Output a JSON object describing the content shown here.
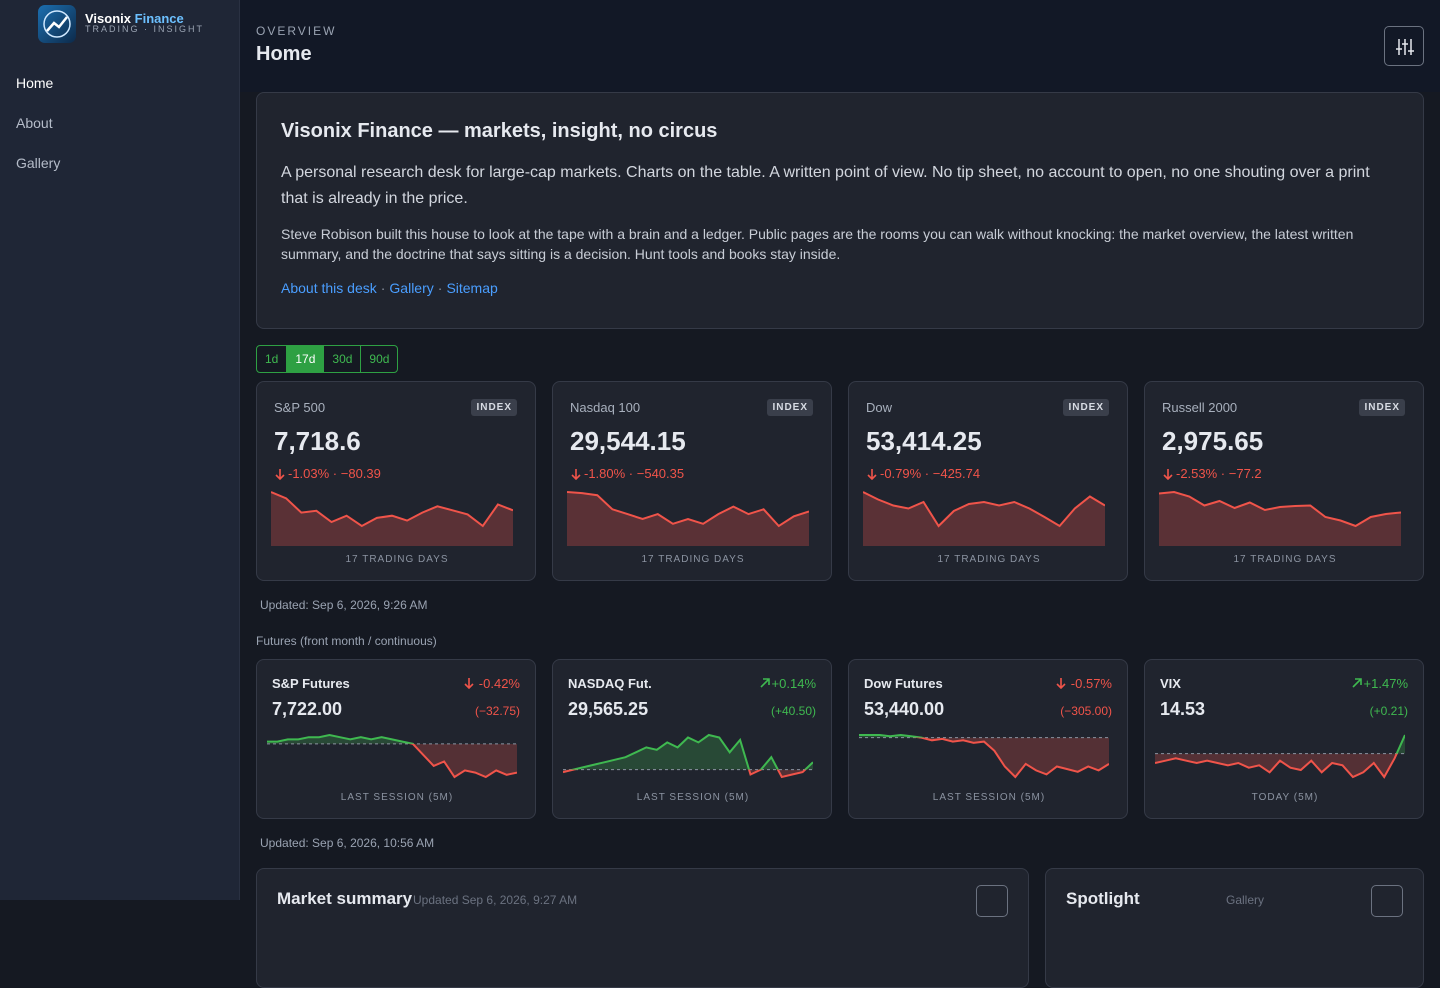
{
  "sidebar": {
    "brand": "Visonix",
    "brand_accent": "Finance",
    "tagline": "TRADING · INSIGHT",
    "nav": [
      "Home",
      "About",
      "Gallery"
    ],
    "active_nav": 0
  },
  "header": {
    "eyebrow": "OVERVIEW",
    "title": "Home"
  },
  "intro": {
    "title": "Visonix Finance — markets, insight, no circus",
    "lead": "A personal research desk for large-cap markets. Charts on the table. A written point of view. No tip sheet, no account to open, no one shouting over a print that is already in the price.",
    "body": "Steve Robison built this house to look at the tape with a brain and a ledger. Public pages are the rooms you can walk without knocking: the market overview, the latest written summary, and the doctrine that says sitting is a decision. Hunt tools and books stay inside.",
    "links": [
      "About this desk",
      "Gallery",
      "Sitemap"
    ],
    "separator": "·"
  },
  "ranges": [
    "1d",
    "17d",
    "30d",
    "90d"
  ],
  "active_range": 1,
  "indices": [
    {
      "name": "S&P 500",
      "badge": "INDEX",
      "price": "7,718.6",
      "change": "-1.03% · −80.39",
      "caption": "17 TRADING DAYS",
      "spark": [
        96,
        82,
        50,
        54,
        29,
        43,
        20,
        38,
        43,
        32,
        50,
        64,
        55,
        46,
        20,
        68,
        55
      ]
    },
    {
      "name": "Nasdaq 100",
      "badge": "INDEX",
      "price": "29,544.15",
      "change": "-1.80% · −540.35",
      "caption": "17 TRADING DAYS",
      "spark": [
        70,
        68,
        64,
        38,
        29,
        20,
        29,
        11,
        20,
        11,
        29,
        43,
        29,
        38,
        7,
        25,
        34
      ]
    },
    {
      "name": "Dow",
      "badge": "INDEX",
      "price": "53,414.25",
      "change": "-0.79% · −425.74",
      "caption": "17 TRADING DAYS",
      "spark": [
        88,
        73,
        61,
        55,
        68,
        20,
        50,
        64,
        68,
        61,
        68,
        55,
        38,
        20,
        55,
        79,
        61
      ]
    },
    {
      "name": "Russell 2000",
      "badge": "INDEX",
      "price": "2,975.65",
      "change": "-2.53% · −77.2",
      "caption": "17 TRADING DAYS",
      "spark": [
        79,
        82,
        73,
        55,
        64,
        50,
        61,
        46,
        52,
        54,
        55,
        32,
        25,
        14,
        32,
        38,
        41
      ]
    }
  ],
  "indices_updated": "Updated: Sep 6, 2026, 9:26 AM",
  "futures_label": "Futures (front month / continuous)",
  "futures": [
    {
      "name": "S&P Futures",
      "change": "-0.42%",
      "price": "7,722.00",
      "delta": "(−32.75)",
      "caption": "LAST SESSION (5M)",
      "spark": [
        1,
        1,
        2,
        2,
        3,
        3,
        4,
        3,
        2,
        3,
        2,
        3,
        2,
        1,
        0,
        -5,
        -10,
        -8,
        -15,
        -12,
        -13,
        -15,
        -12,
        -14,
        -13
      ]
    },
    {
      "name": "NASDAQ Fut.",
      "change": "+0.14%",
      "price": "29,565.25",
      "delta": "(+40.50)",
      "caption": "LAST SESSION (5M)",
      "spark": [
        -2,
        0,
        2,
        4,
        6,
        8,
        10,
        14,
        18,
        16,
        22,
        18,
        26,
        22,
        28,
        26,
        14,
        24,
        -4,
        0,
        10,
        -6,
        -4,
        -2,
        6
      ]
    },
    {
      "name": "Dow Futures",
      "change": "-0.57%",
      "price": "53,440.00",
      "delta": "(−305.00)",
      "caption": "LAST SESSION (5M)",
      "spark": [
        2,
        2,
        2,
        1,
        2,
        1,
        0,
        -2,
        -1,
        -3,
        -2,
        -4,
        -3,
        -10,
        -22,
        -30,
        -20,
        -25,
        -28,
        -22,
        -24,
        -26,
        -22,
        -25,
        -20
      ]
    },
    {
      "name": "VIX",
      "change": "+1.47%",
      "price": "14.53",
      "delta": "(+0.21)",
      "caption": "TODAY (5M)",
      "spark": [
        -4,
        -3,
        -2,
        -3,
        -4,
        -3,
        -4,
        -5,
        -4,
        -6,
        -5,
        -8,
        -3,
        -6,
        -7,
        -3,
        -8,
        -4,
        -5,
        -10,
        -8,
        -4,
        -10,
        -2,
        8
      ]
    }
  ],
  "futures_updated": "Updated: Sep 6, 2026, 10:56 AM",
  "summary": {
    "title": "Market summary",
    "updated": "Updated Sep 6, 2026, 9:27 AM"
  },
  "spotlight": {
    "title": "Spotlight",
    "link": "Gallery"
  }
}
